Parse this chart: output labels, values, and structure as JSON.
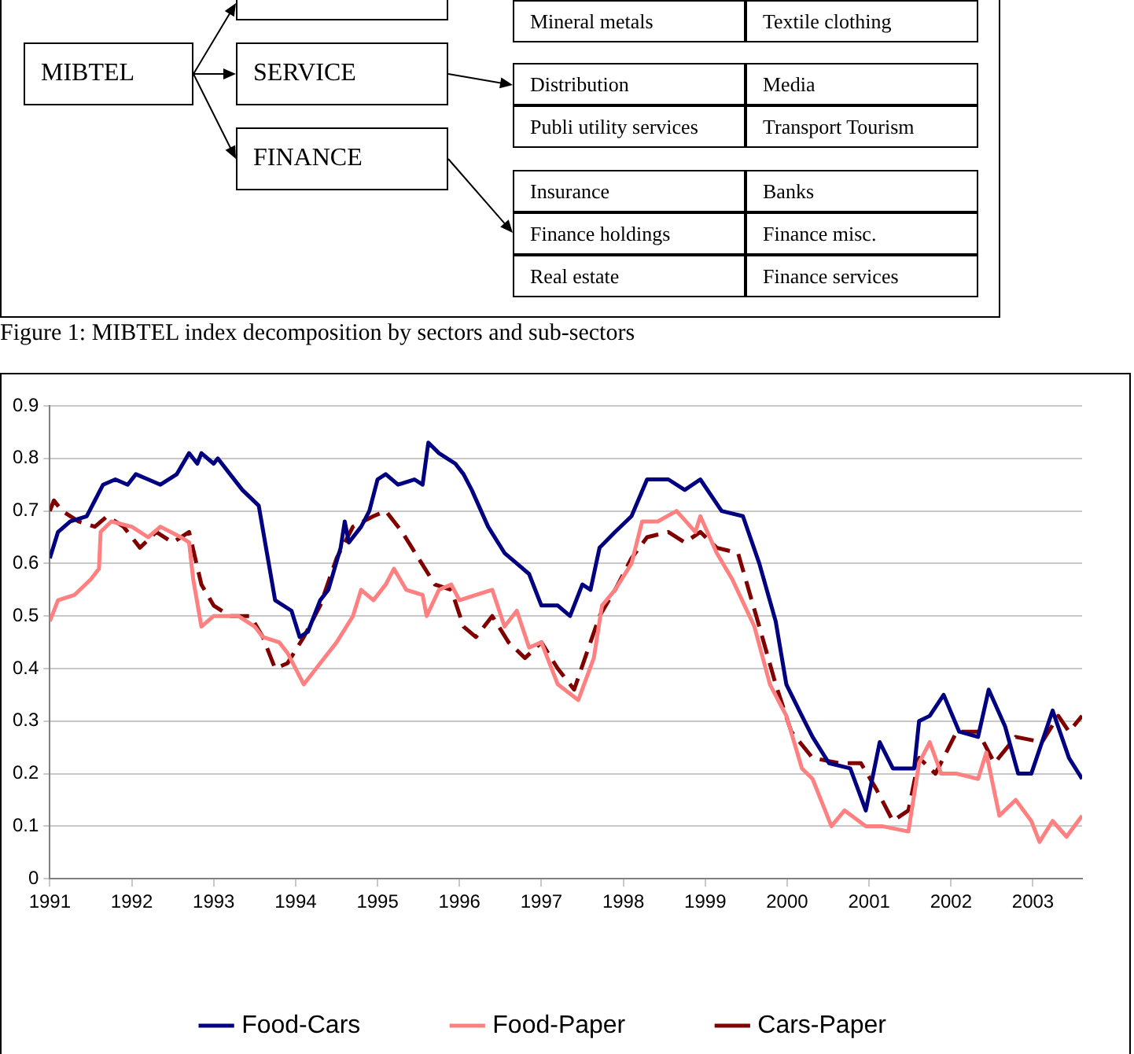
{
  "chart_data": [
    {
      "type": "other",
      "annotations": [
        "MIBTEL",
        "SERVICE",
        "FINANCE",
        "Mineral metals",
        "Textile clothing",
        "Distribution",
        "Media",
        "Publi utility services",
        "Transport Tourism",
        "Insurance",
        "Banks",
        "Finance holdings",
        "Finance misc.",
        "Real estate",
        "Finance services",
        "Figure 1: MIBTEL index decomposition by sectors and sub-sectors"
      ]
    },
    {
      "type": "line",
      "xlim": [
        1991,
        2003.6
      ],
      "xticks": [
        1991,
        1992,
        1993,
        1994,
        1995,
        1996,
        1997,
        1998,
        1999,
        2000,
        2001,
        2002,
        2003
      ],
      "ylim": [
        0,
        0.9
      ],
      "yticks": [
        0,
        0.1,
        0.2,
        0.3,
        0.4,
        0.5,
        0.6,
        0.7,
        0.8,
        0.9
      ],
      "grid": "y",
      "legend": "bottom",
      "marker": "none",
      "series": [
        {
          "name": "Food-Cars",
          "color": "#000080",
          "line_style": "solid",
          "x": [
            1991.0,
            1991.1,
            1991.25,
            1991.45,
            1991.55,
            1991.65,
            1991.8,
            1991.95,
            1992.05,
            1992.2,
            1992.35,
            1992.55,
            1992.7,
            1992.8,
            1992.85,
            1993.0,
            1993.05,
            1993.2,
            1993.35,
            1993.55,
            1993.65,
            1993.75,
            1993.95,
            1994.05,
            1994.15,
            1994.3,
            1994.4,
            1994.55,
            1994.6,
            1994.65,
            1994.8,
            1994.9,
            1995.0,
            1995.1,
            1995.25,
            1995.45,
            1995.55,
            1995.62,
            1995.75,
            1995.85,
            1995.95,
            1996.05,
            1996.15,
            1996.35,
            1996.55,
            1996.7,
            1996.85,
            1997.0,
            1997.2,
            1997.35,
            1997.5,
            1997.6,
            1997.71,
            1997.9,
            1998.1,
            1998.29,
            1998.55,
            1998.75,
            1998.94,
            1999.2,
            1999.46,
            1999.66,
            1999.86,
            1999.99,
            2000.18,
            2000.31,
            2000.51,
            2000.77,
            2000.96,
            2001.13,
            2001.29,
            2001.55,
            2001.61,
            2001.74,
            2001.91,
            2002.1,
            2002.33,
            2002.46,
            2002.66,
            2002.82,
            2002.98,
            2003.24,
            2003.44,
            2003.6
          ],
          "values": [
            0.61,
            0.66,
            0.68,
            0.69,
            0.72,
            0.75,
            0.76,
            0.75,
            0.77,
            0.76,
            0.75,
            0.77,
            0.81,
            0.79,
            0.81,
            0.79,
            0.8,
            0.77,
            0.74,
            0.71,
            0.62,
            0.53,
            0.51,
            0.46,
            0.47,
            0.53,
            0.55,
            0.63,
            0.68,
            0.64,
            0.67,
            0.7,
            0.76,
            0.77,
            0.75,
            0.76,
            0.75,
            0.83,
            0.81,
            0.8,
            0.79,
            0.77,
            0.74,
            0.67,
            0.62,
            0.6,
            0.58,
            0.52,
            0.52,
            0.5,
            0.56,
            0.55,
            0.63,
            0.66,
            0.69,
            0.76,
            0.76,
            0.74,
            0.76,
            0.7,
            0.69,
            0.6,
            0.49,
            0.37,
            0.31,
            0.27,
            0.22,
            0.21,
            0.13,
            0.26,
            0.21,
            0.21,
            0.3,
            0.31,
            0.35,
            0.28,
            0.27,
            0.36,
            0.29,
            0.2,
            0.2,
            0.32,
            0.23,
            0.19
          ]
        },
        {
          "name": "Food-Paper",
          "color": "#ff8080",
          "line_style": "solid",
          "x": [
            1991.0,
            1991.1,
            1991.3,
            1991.5,
            1991.6,
            1991.62,
            1991.75,
            1992.0,
            1992.2,
            1992.35,
            1992.6,
            1992.7,
            1992.75,
            1992.85,
            1993.0,
            1993.3,
            1993.5,
            1993.6,
            1993.8,
            1993.9,
            1994.1,
            1994.3,
            1994.5,
            1994.7,
            1994.8,
            1994.95,
            1995.1,
            1995.2,
            1995.35,
            1995.55,
            1995.6,
            1995.75,
            1995.9,
            1996.0,
            1996.2,
            1996.4,
            1996.55,
            1996.7,
            1996.85,
            1997.0,
            1997.2,
            1997.45,
            1997.64,
            1997.74,
            1997.9,
            1998.1,
            1998.23,
            1998.42,
            1998.65,
            1998.88,
            1998.94,
            1999.14,
            1999.33,
            1999.6,
            1999.79,
            1999.99,
            2000.18,
            2000.31,
            2000.54,
            2000.7,
            2000.96,
            2001.16,
            2001.48,
            2001.61,
            2001.74,
            2001.88,
            2002.07,
            2002.33,
            2002.43,
            2002.59,
            2002.79,
            2002.98,
            2003.08,
            2003.24,
            2003.41,
            2003.6
          ],
          "values": [
            0.49,
            0.53,
            0.54,
            0.57,
            0.59,
            0.66,
            0.68,
            0.67,
            0.65,
            0.67,
            0.65,
            0.64,
            0.57,
            0.48,
            0.5,
            0.5,
            0.48,
            0.46,
            0.45,
            0.43,
            0.37,
            0.41,
            0.45,
            0.5,
            0.55,
            0.53,
            0.56,
            0.59,
            0.55,
            0.54,
            0.5,
            0.55,
            0.56,
            0.53,
            0.54,
            0.55,
            0.48,
            0.51,
            0.44,
            0.45,
            0.37,
            0.34,
            0.42,
            0.52,
            0.55,
            0.6,
            0.68,
            0.68,
            0.7,
            0.66,
            0.69,
            0.62,
            0.57,
            0.48,
            0.37,
            0.31,
            0.21,
            0.19,
            0.1,
            0.13,
            0.1,
            0.1,
            0.09,
            0.22,
            0.26,
            0.2,
            0.2,
            0.19,
            0.24,
            0.12,
            0.15,
            0.11,
            0.07,
            0.11,
            0.08,
            0.12
          ]
        },
        {
          "name": "Cars-Paper",
          "color": "#800000",
          "line_style": "dashed",
          "x": [
            1991.0,
            1991.05,
            1991.15,
            1991.35,
            1991.55,
            1991.7,
            1991.9,
            1992.1,
            1992.3,
            1992.5,
            1992.7,
            1992.85,
            1993.0,
            1993.2,
            1993.45,
            1993.6,
            1993.75,
            1993.9,
            1994.1,
            1994.3,
            1994.5,
            1994.7,
            1994.95,
            1995.1,
            1995.3,
            1995.5,
            1995.7,
            1995.9,
            1996.05,
            1996.2,
            1996.4,
            1996.6,
            1996.8,
            1997.0,
            1997.2,
            1997.4,
            1997.51,
            1997.71,
            1997.9,
            1998.1,
            1998.29,
            1998.55,
            1998.75,
            1998.94,
            1999.14,
            1999.4,
            1999.66,
            1999.86,
            2000.05,
            2000.31,
            2000.64,
            2000.9,
            2001.09,
            2001.29,
            2001.48,
            2001.61,
            2001.81,
            2002.07,
            2002.33,
            2002.53,
            2002.79,
            2003.11,
            2003.31,
            2003.44,
            2003.6
          ],
          "values": [
            0.7,
            0.72,
            0.7,
            0.68,
            0.67,
            0.69,
            0.67,
            0.63,
            0.66,
            0.64,
            0.66,
            0.56,
            0.52,
            0.5,
            0.5,
            0.46,
            0.4,
            0.41,
            0.46,
            0.52,
            0.61,
            0.67,
            0.69,
            0.7,
            0.66,
            0.61,
            0.56,
            0.55,
            0.48,
            0.46,
            0.5,
            0.45,
            0.42,
            0.45,
            0.4,
            0.36,
            0.41,
            0.5,
            0.55,
            0.61,
            0.65,
            0.66,
            0.64,
            0.66,
            0.63,
            0.62,
            0.48,
            0.37,
            0.28,
            0.23,
            0.22,
            0.22,
            0.17,
            0.11,
            0.13,
            0.23,
            0.2,
            0.28,
            0.28,
            0.22,
            0.27,
            0.26,
            0.31,
            0.28,
            0.31
          ]
        }
      ]
    }
  ]
}
